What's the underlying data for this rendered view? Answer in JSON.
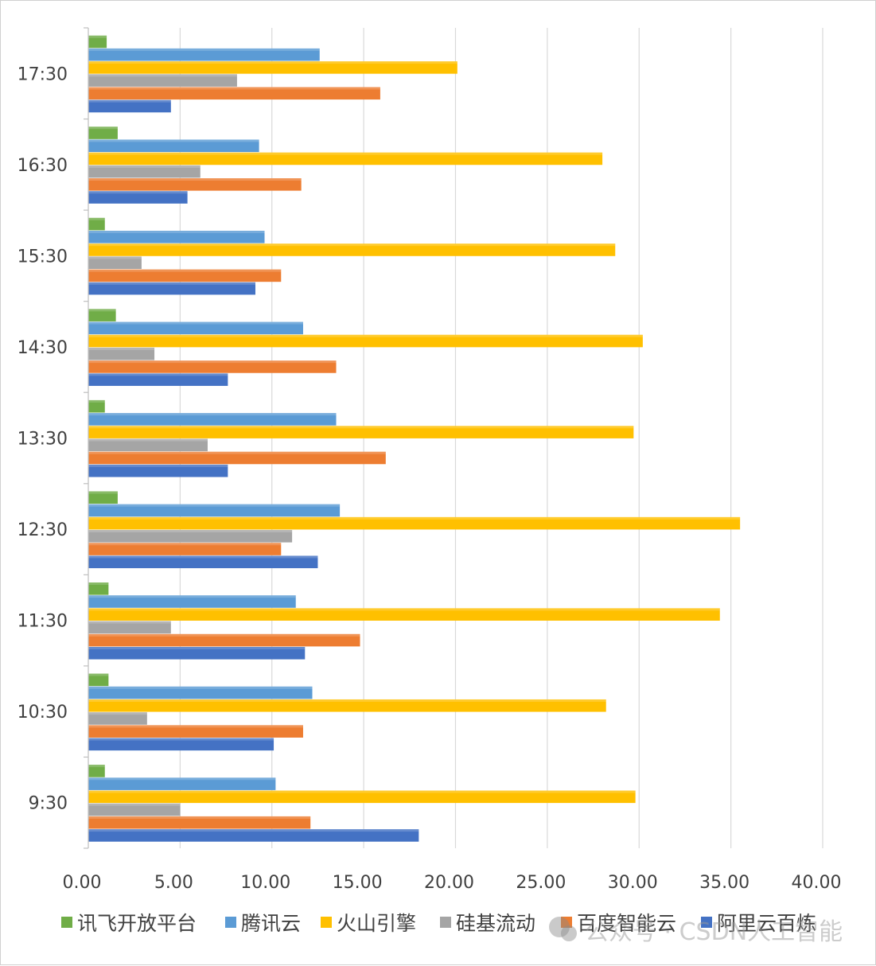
{
  "chart_data": {
    "type": "bar",
    "orientation": "horizontal",
    "title": "",
    "xlabel": "",
    "ylabel": "",
    "xlim": [
      0,
      40
    ],
    "x_ticks": [
      "0.00",
      "5.00",
      "10.00",
      "15.00",
      "20.00",
      "25.00",
      "30.00",
      "35.00",
      "40.00"
    ],
    "x_tick_values": [
      0,
      5,
      10,
      15,
      20,
      25,
      30,
      35,
      40
    ],
    "grid": "vertical",
    "legend_position": "bottom",
    "categories": [
      "9:30",
      "10:30",
      "11:30",
      "12:30",
      "13:30",
      "14:30",
      "15:30",
      "16:30",
      "17:30"
    ],
    "series": [
      {
        "name": "讯飞开放平台",
        "color": "#70ad47",
        "values": [
          0.9,
          1.1,
          1.1,
          1.6,
          0.9,
          1.5,
          0.9,
          1.6,
          1.0
        ]
      },
      {
        "name": "腾讯云",
        "color": "#5b9bd5",
        "values": [
          10.2,
          12.2,
          11.3,
          13.7,
          13.5,
          11.7,
          9.6,
          9.3,
          12.6
        ]
      },
      {
        "name": "火山引擎",
        "color": "#ffc000",
        "values": [
          29.8,
          28.2,
          34.4,
          35.5,
          29.7,
          30.2,
          28.7,
          28.0,
          20.1
        ]
      },
      {
        "name": "硅基流动",
        "color": "#a5a5a5",
        "values": [
          5.0,
          3.2,
          4.5,
          11.1,
          6.5,
          3.6,
          2.9,
          6.1,
          8.1
        ]
      },
      {
        "name": "百度智能云",
        "color": "#ed7d31",
        "values": [
          12.1,
          11.7,
          14.8,
          10.5,
          16.2,
          13.5,
          10.5,
          11.6,
          15.9
        ]
      },
      {
        "name": "阿里云百炼",
        "color": "#4472c4",
        "values": [
          18.0,
          10.1,
          11.8,
          12.5,
          7.6,
          7.6,
          9.1,
          5.4,
          4.5
        ]
      }
    ],
    "watermark": "公众号 · CSDN人工智能"
  }
}
